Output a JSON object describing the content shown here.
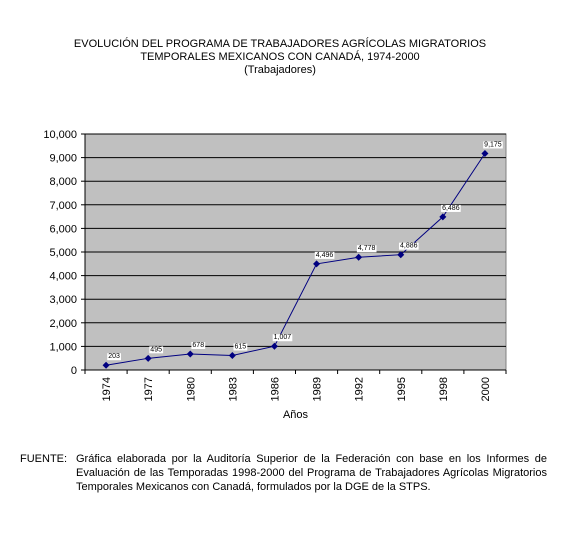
{
  "chart_data": {
    "type": "line",
    "title": "EVOLUCIÓN DEL PROGRAMA DE TRABAJADORES AGRÍCOLAS MIGRATORIOS",
    "title_line2": "TEMPORALES MEXICANOS CON CANADÁ, 1974-2000",
    "subtitle": "(Trabajadores)",
    "xlabel": "Años",
    "ylabel": "",
    "categories": [
      "1974",
      "1977",
      "1980",
      "1983",
      "1986",
      "1989",
      "1992",
      "1995",
      "1998",
      "2000"
    ],
    "values": [
      203,
      495,
      678,
      615,
      1007,
      4496,
      4778,
      4886,
      6486,
      9175
    ],
    "data_labels": [
      "203",
      "495",
      "678",
      "615",
      "1,007",
      "4,496",
      "4,778",
      "4,886",
      "6,486",
      "9,175"
    ],
    "ylim": [
      0,
      10000
    ],
    "yticks": [
      "0",
      "1,000",
      "2,000",
      "3,000",
      "4,000",
      "5,000",
      "6,000",
      "7,000",
      "8,000",
      "9,000",
      "10,000"
    ],
    "grid": true,
    "plot_background": "#c0c0c0",
    "line_color": "#000080"
  },
  "footer": {
    "label": "FUENTE:",
    "text": "Gráfica elaborada por la Auditoría Superior de la Federación con base en los Informes de Evaluación de las Temporadas 1998-2000 del Programa de Trabajadores Agrícolas Migratorios Temporales Mexicanos con Canadá, formulados por la DGE de la STPS."
  }
}
